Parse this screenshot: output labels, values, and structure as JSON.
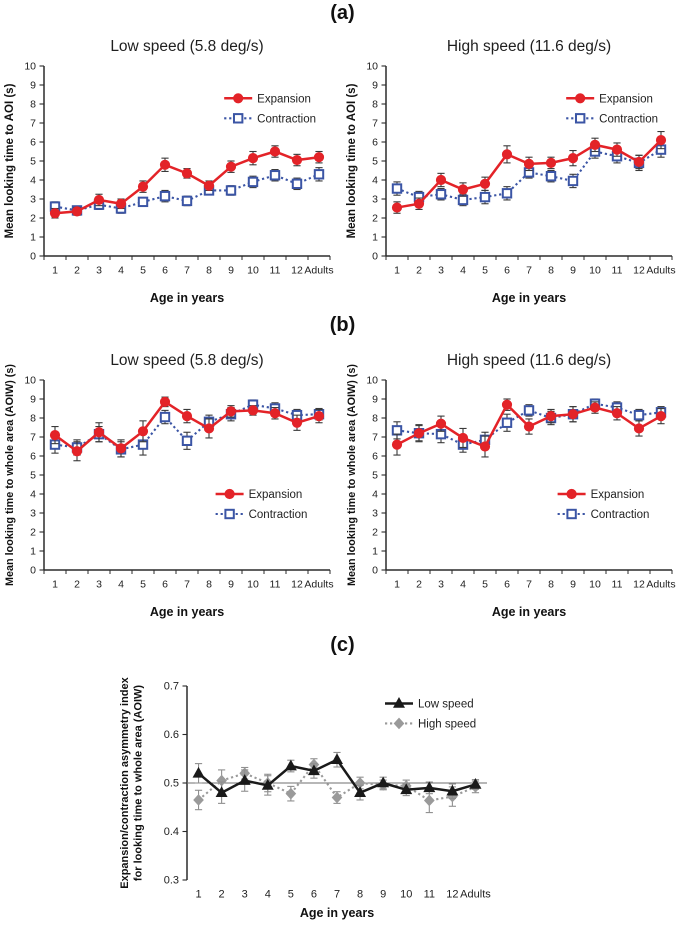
{
  "figure": {
    "panel_labels": [
      "(a)",
      "(b)",
      "(c)"
    ]
  },
  "chart_data": [
    {
      "id": "a-low-speed",
      "type": "line",
      "title": "Low speed (5.8 deg/s)",
      "xlabel": "Age in years",
      "ylabel": [
        "Mean looking time to AOI (s)"
      ],
      "ylim": [
        0,
        10
      ],
      "yticks": [
        0,
        1,
        2,
        3,
        4,
        5,
        6,
        7,
        8,
        9,
        10
      ],
      "categories": [
        "1",
        "2",
        "3",
        "4",
        "5",
        "6",
        "7",
        "8",
        "9",
        "10",
        "11",
        "12",
        "Adults"
      ],
      "x_axis_line": true,
      "grid": false,
      "legend_position": "top-right-inside",
      "legend": {
        "x": 0.63,
        "y": 0.17
      },
      "error_bar_color": "#3a3a3a",
      "series": [
        {
          "name": "Expansion",
          "color": "#e32328",
          "marker": "circle",
          "fill": "solid",
          "line": "solid",
          "values": [
            2.25,
            2.35,
            2.95,
            2.75,
            3.65,
            4.8,
            4.35,
            3.7,
            4.7,
            5.15,
            5.5,
            5.05,
            5.2
          ],
          "errors": [
            0.25,
            0.2,
            0.3,
            0.25,
            0.3,
            0.35,
            0.25,
            0.25,
            0.3,
            0.35,
            0.3,
            0.3,
            0.3
          ]
        },
        {
          "name": "Contraction",
          "color": "#3b55a5",
          "marker": "square",
          "fill": "open",
          "line": "dotted",
          "values": [
            2.6,
            2.4,
            2.7,
            2.5,
            2.85,
            3.15,
            2.9,
            3.45,
            3.45,
            3.9,
            4.25,
            3.8,
            4.3
          ],
          "errors": [
            0.25,
            0.2,
            0.25,
            0.25,
            0.2,
            0.3,
            0.25,
            0.2,
            0.25,
            0.3,
            0.3,
            0.3,
            0.35
          ]
        }
      ]
    },
    {
      "id": "a-high-speed",
      "type": "line",
      "title": "High speed (11.6 deg/s)",
      "xlabel": "Age in  years",
      "ylabel": [
        "Mean looking time to AOI (s)"
      ],
      "ylim": [
        0,
        10
      ],
      "yticks": [
        0,
        1,
        2,
        3,
        4,
        5,
        6,
        7,
        8,
        9,
        10
      ],
      "categories": [
        "1",
        "2",
        "3",
        "4",
        "5",
        "6",
        "7",
        "8",
        "9",
        "10",
        "11",
        "12",
        "Adults"
      ],
      "x_axis_line": true,
      "grid": false,
      "legend_position": "top-right-inside",
      "legend": {
        "x": 0.63,
        "y": 0.17
      },
      "error_bar_color": "#3a3a3a",
      "series": [
        {
          "name": "Expansion",
          "color": "#e32328",
          "marker": "circle",
          "fill": "solid",
          "line": "solid",
          "values": [
            2.55,
            2.75,
            4.0,
            3.5,
            3.8,
            5.35,
            4.85,
            4.9,
            5.15,
            5.85,
            5.6,
            4.95,
            6.1
          ],
          "errors": [
            0.3,
            0.3,
            0.35,
            0.35,
            0.35,
            0.45,
            0.35,
            0.3,
            0.4,
            0.35,
            0.35,
            0.35,
            0.45
          ]
        },
        {
          "name": "Contraction",
          "color": "#3b55a5",
          "marker": "square",
          "fill": "open",
          "line": "dotted",
          "values": [
            3.55,
            3.1,
            3.25,
            2.95,
            3.1,
            3.3,
            4.4,
            4.2,
            3.95,
            5.5,
            5.25,
            4.9,
            5.6
          ],
          "errors": [
            0.35,
            0.3,
            0.3,
            0.3,
            0.35,
            0.35,
            0.3,
            0.3,
            0.35,
            0.35,
            0.35,
            0.4,
            0.4
          ]
        }
      ]
    },
    {
      "id": "b-low-speed",
      "type": "line",
      "title": "Low speed (5.8 deg/s)",
      "xlabel": "Age in  years",
      "ylabel": [
        "Mean looking time to whole area (AOIW) (s)"
      ],
      "ylim": [
        0,
        10
      ],
      "yticks": [
        0,
        1,
        2,
        3,
        4,
        5,
        6,
        7,
        8,
        9,
        10
      ],
      "categories": [
        "1",
        "2",
        "3",
        "4",
        "5",
        "6",
        "7",
        "8",
        "9",
        "10",
        "11",
        "12",
        "Adults"
      ],
      "x_axis_line": true,
      "grid": false,
      "legend_position": "middle-right-inside",
      "legend": {
        "x": 0.6,
        "y": 0.6
      },
      "error_bar_color": "#3a3a3a",
      "series": [
        {
          "name": "Expansion",
          "color": "#e32328",
          "marker": "circle",
          "fill": "solid",
          "line": "solid",
          "values": [
            7.1,
            6.25,
            7.25,
            6.4,
            7.3,
            8.85,
            8.1,
            7.45,
            8.35,
            8.4,
            8.25,
            7.75,
            8.1
          ],
          "errors": [
            0.45,
            0.5,
            0.5,
            0.45,
            0.55,
            0.25,
            0.35,
            0.5,
            0.3,
            0.25,
            0.3,
            0.4,
            0.35
          ]
        },
        {
          "name": "Contraction",
          "color": "#3b55a5",
          "marker": "square",
          "fill": "open",
          "line": "dotted",
          "values": [
            6.6,
            6.45,
            7.15,
            6.35,
            6.6,
            8.05,
            6.8,
            7.8,
            8.2,
            8.7,
            8.5,
            8.15,
            8.2
          ],
          "errors": [
            0.45,
            0.4,
            0.4,
            0.4,
            0.55,
            0.35,
            0.45,
            0.35,
            0.35,
            0.25,
            0.3,
            0.3,
            0.3
          ]
        }
      ]
    },
    {
      "id": "b-high-speed",
      "type": "line",
      "title": "High speed (11.6 deg/s)",
      "xlabel": "Age in  years",
      "ylabel": [
        "Mean looking time to whole area (AOIW) (s)"
      ],
      "ylim": [
        0,
        10
      ],
      "yticks": [
        0,
        1,
        2,
        3,
        4,
        5,
        6,
        7,
        8,
        9,
        10
      ],
      "categories": [
        "1",
        "2",
        "3",
        "4",
        "5",
        "6",
        "7",
        "8",
        "9",
        "10",
        "11",
        "12",
        "Adults"
      ],
      "x_axis_line": true,
      "grid": false,
      "legend_position": "middle-right-inside",
      "legend": {
        "x": 0.6,
        "y": 0.6
      },
      "error_bar_color": "#3a3a3a",
      "series": [
        {
          "name": "Expansion",
          "color": "#e32328",
          "marker": "circle",
          "fill": "solid",
          "line": "solid",
          "values": [
            6.6,
            7.2,
            7.7,
            6.95,
            6.5,
            8.7,
            7.55,
            8.1,
            8.2,
            8.55,
            8.25,
            7.45,
            8.1
          ],
          "errors": [
            0.55,
            0.45,
            0.4,
            0.5,
            0.55,
            0.3,
            0.4,
            0.35,
            0.4,
            0.3,
            0.35,
            0.4,
            0.4
          ]
        },
        {
          "name": "Contraction",
          "color": "#3b55a5",
          "marker": "square",
          "fill": "open",
          "line": "dotted",
          "values": [
            7.35,
            7.2,
            7.15,
            6.6,
            6.85,
            7.75,
            8.4,
            8.0,
            8.2,
            8.75,
            8.55,
            8.15,
            8.3
          ],
          "errors": [
            0.45,
            0.4,
            0.45,
            0.4,
            0.4,
            0.45,
            0.3,
            0.35,
            0.4,
            0.25,
            0.3,
            0.3,
            0.3
          ]
        }
      ]
    },
    {
      "id": "c-asymmetry-index",
      "type": "line",
      "title": "",
      "xlabel": "Age in  years",
      "ylabel": [
        "Expansion/contraction asymmetry index",
        "for looking time to whole area (AOIW)"
      ],
      "ylim": [
        0.3,
        0.7
      ],
      "yticks": [
        0.3,
        0.4,
        0.5,
        0.6,
        0.7
      ],
      "ytick_labels": [
        "0.3",
        "0.4",
        "0.5",
        "0.6",
        "0.7"
      ],
      "categories": [
        "1",
        "2",
        "3",
        "4",
        "5",
        "6",
        "7",
        "8",
        "9",
        "10",
        "11",
        "12",
        "Adults"
      ],
      "x_axis_line": false,
      "grid": false,
      "refline": 0.5,
      "legend_position": "top-right-inside",
      "legend": {
        "x": 0.66,
        "y": 0.09
      },
      "error_bar_color": "#8f8f8f",
      "series": [
        {
          "name": "Low speed",
          "color": "#1a1a1a",
          "marker": "triangle",
          "fill": "solid",
          "line": "solid",
          "values": [
            0.52,
            0.48,
            0.505,
            0.495,
            0.535,
            0.525,
            0.548,
            0.48,
            0.5,
            0.486,
            0.49,
            0.483,
            0.497
          ],
          "errors": [
            0.02,
            0.022,
            0.022,
            0.02,
            0.012,
            0.015,
            0.015,
            0.015,
            0.012,
            0.012,
            0.012,
            0.015,
            0.01
          ]
        },
        {
          "name": "High speed",
          "color": "#9a9a9a",
          "marker": "diamond",
          "fill": "solid",
          "line": "dotted",
          "values": [
            0.465,
            0.505,
            0.52,
            0.5,
            0.478,
            0.538,
            0.47,
            0.5,
            0.496,
            0.494,
            0.464,
            0.472,
            0.492
          ],
          "errors": [
            0.02,
            0.022,
            0.012,
            0.018,
            0.015,
            0.012,
            0.012,
            0.012,
            0.01,
            0.012,
            0.025,
            0.02,
            0.012
          ]
        }
      ]
    }
  ]
}
